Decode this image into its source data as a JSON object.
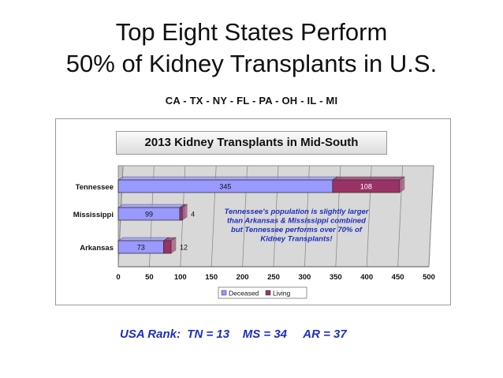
{
  "slide": {
    "title_line1": "Top Eight States Perform",
    "title_line2": "50% of Kidney Transplants in U.S.",
    "subtitle": "CA - TX - NY - FL - PA - OH - IL - MI",
    "usa_rank": "USA Rank:  TN = 13    MS = 34     AR = 37"
  },
  "chart_data": {
    "type": "bar",
    "orientation": "horizontal",
    "stacked": true,
    "title": "2013 Kidney Transplants in Mid-South",
    "categories": [
      "Tennessee",
      "Mississippi",
      "Arkansas"
    ],
    "series": [
      {
        "name": "Deceased",
        "values": [
          345,
          99,
          73
        ],
        "color": "#9999ff"
      },
      {
        "name": "Living",
        "values": [
          108,
          4,
          12
        ],
        "color": "#993366"
      }
    ],
    "xlim": [
      0,
      500
    ],
    "xticks": [
      0,
      50,
      100,
      150,
      200,
      250,
      300,
      350,
      400,
      450,
      500
    ],
    "grid": true,
    "legend_position": "bottom",
    "annotation_lines": [
      "Tennessee's population is slightly larger",
      "than Arkansas & Mississippi combined",
      "but Tennessee performs over 70% of",
      "Kidney Transplants!"
    ],
    "annotation_color": "#1f2fbf"
  }
}
